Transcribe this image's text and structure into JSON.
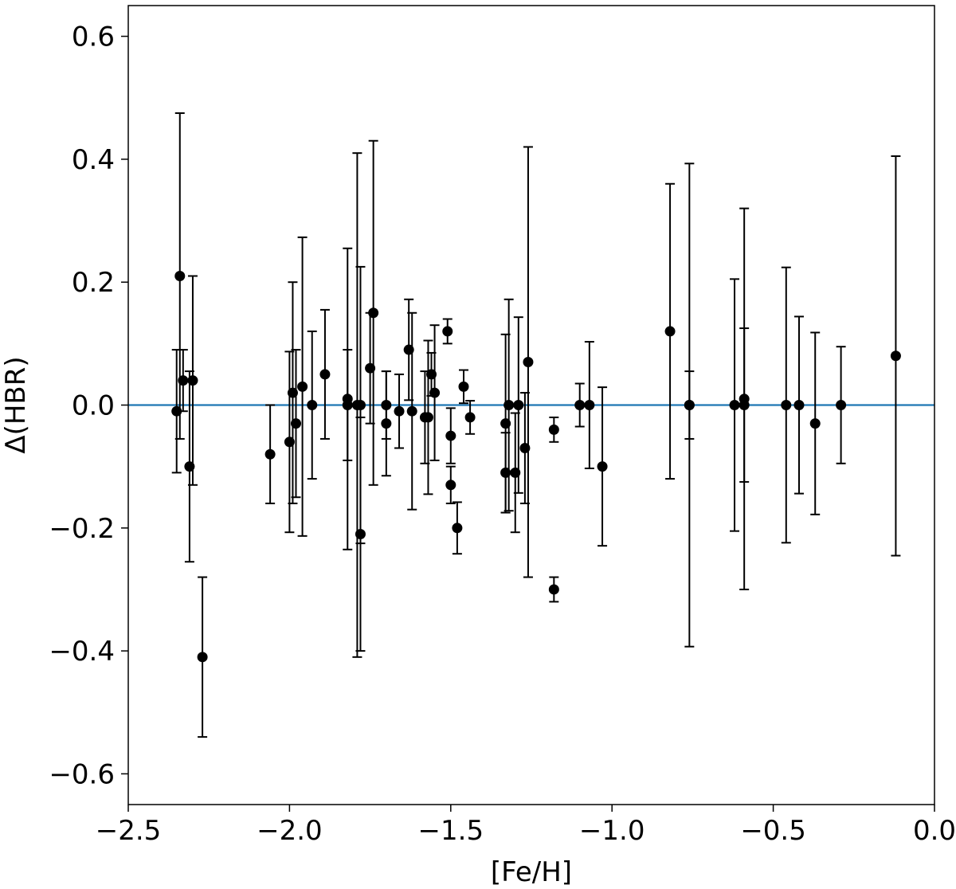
{
  "chart_data": {
    "type": "scatter",
    "title": "",
    "xlabel": "[Fe/H]",
    "ylabel": "Δ(HBR)",
    "xlim": [
      -2.5,
      0.0
    ],
    "ylim": [
      -0.65,
      0.65
    ],
    "xticks": [
      -2.5,
      -2.0,
      -1.5,
      -1.0,
      -0.5,
      0.0
    ],
    "xtick_labels": [
      "−2.5",
      "−2.0",
      "−1.5",
      "−1.0",
      "−0.5",
      "0.0"
    ],
    "yticks": [
      -0.6,
      -0.4,
      -0.2,
      0.0,
      0.2,
      0.4,
      0.6
    ],
    "ytick_labels": [
      "−0.6",
      "−0.4",
      "−0.2",
      "0.0",
      "0.2",
      "0.4",
      "0.6"
    ],
    "grid": false,
    "reference_line": {
      "y": 0.0,
      "color": "#1f77b4"
    },
    "marker_color": "#000000",
    "points": [
      {
        "x": -2.35,
        "y": -0.01,
        "err": 0.1
      },
      {
        "x": -2.34,
        "y": 0.21,
        "err": 0.265
      },
      {
        "x": -2.33,
        "y": 0.04,
        "err": 0.05
      },
      {
        "x": -2.31,
        "y": -0.1,
        "err": 0.155
      },
      {
        "x": -2.3,
        "y": 0.04,
        "err": 0.17
      },
      {
        "x": -2.27,
        "y": -0.41,
        "err": 0.13
      },
      {
        "x": -2.06,
        "y": -0.08,
        "err": 0.08
      },
      {
        "x": -2.0,
        "y": -0.06,
        "err": 0.147
      },
      {
        "x": -1.99,
        "y": 0.02,
        "err": 0.18
      },
      {
        "x": -1.98,
        "y": -0.03,
        "err": 0.12
      },
      {
        "x": -1.96,
        "y": 0.03,
        "err": 0.243
      },
      {
        "x": -1.93,
        "y": 0.0,
        "err": 0.12
      },
      {
        "x": -1.89,
        "y": 0.05,
        "err": 0.105
      },
      {
        "x": -1.82,
        "y": 0.01,
        "err": 0.245
      },
      {
        "x": -1.82,
        "y": 0.0,
        "err": 0.09
      },
      {
        "x": -1.79,
        "y": 0.0,
        "err": 0.41
      },
      {
        "x": -1.78,
        "y": -0.21,
        "err": 0.19
      },
      {
        "x": -1.78,
        "y": 0.0,
        "err": 0.225
      },
      {
        "x": -1.75,
        "y": 0.06,
        "err": 0.09
      },
      {
        "x": -1.74,
        "y": 0.15,
        "err": 0.28
      },
      {
        "x": -1.7,
        "y": 0.0,
        "err": 0.055
      },
      {
        "x": -1.7,
        "y": -0.03,
        "err": 0.085
      },
      {
        "x": -1.66,
        "y": -0.01,
        "err": 0.06
      },
      {
        "x": -1.63,
        "y": 0.09,
        "err": 0.082
      },
      {
        "x": -1.62,
        "y": -0.01,
        "err": 0.16
      },
      {
        "x": -1.58,
        "y": -0.02,
        "err": 0.075
      },
      {
        "x": -1.57,
        "y": -0.02,
        "err": 0.125
      },
      {
        "x": -1.56,
        "y": 0.05,
        "err": 0.035
      },
      {
        "x": -1.55,
        "y": 0.02,
        "err": 0.11
      },
      {
        "x": -1.51,
        "y": 0.12,
        "err": 0.02
      },
      {
        "x": -1.5,
        "y": -0.05,
        "err": 0.045
      },
      {
        "x": -1.5,
        "y": -0.13,
        "err": 0.03
      },
      {
        "x": -1.48,
        "y": -0.2,
        "err": 0.042
      },
      {
        "x": -1.46,
        "y": 0.03,
        "err": 0.027
      },
      {
        "x": -1.44,
        "y": -0.02,
        "err": 0.027
      },
      {
        "x": -1.33,
        "y": -0.03,
        "err": 0.145
      },
      {
        "x": -1.33,
        "y": -0.11,
        "err": 0.065
      },
      {
        "x": -1.32,
        "y": 0.0,
        "err": 0.172
      },
      {
        "x": -1.3,
        "y": -0.11,
        "err": 0.097
      },
      {
        "x": -1.29,
        "y": 0.0,
        "err": 0.143
      },
      {
        "x": -1.27,
        "y": -0.07,
        "err": 0.09
      },
      {
        "x": -1.26,
        "y": 0.07,
        "err": 0.35
      },
      {
        "x": -1.18,
        "y": -0.04,
        "err": 0.02
      },
      {
        "x": -1.18,
        "y": -0.3,
        "err": 0.02
      },
      {
        "x": -1.1,
        "y": 0.0,
        "err": 0.035
      },
      {
        "x": -1.07,
        "y": 0.0,
        "err": 0.103
      },
      {
        "x": -1.03,
        "y": -0.1,
        "err": 0.129
      },
      {
        "x": -0.82,
        "y": 0.12,
        "err": 0.24
      },
      {
        "x": -0.76,
        "y": 0.0,
        "err": 0.393
      },
      {
        "x": -0.76,
        "y": 0.0,
        "err": 0.055
      },
      {
        "x": -0.62,
        "y": 0.0,
        "err": 0.205
      },
      {
        "x": -0.59,
        "y": 0.01,
        "err": 0.31
      },
      {
        "x": -0.59,
        "y": 0.0,
        "err": 0.125
      },
      {
        "x": -0.46,
        "y": 0.0,
        "err": 0.224
      },
      {
        "x": -0.42,
        "y": 0.0,
        "err": 0.144
      },
      {
        "x": -0.37,
        "y": -0.03,
        "err": 0.148
      },
      {
        "x": -0.29,
        "y": 0.0,
        "err": 0.095
      },
      {
        "x": -0.12,
        "y": 0.08,
        "err": 0.325
      }
    ]
  }
}
